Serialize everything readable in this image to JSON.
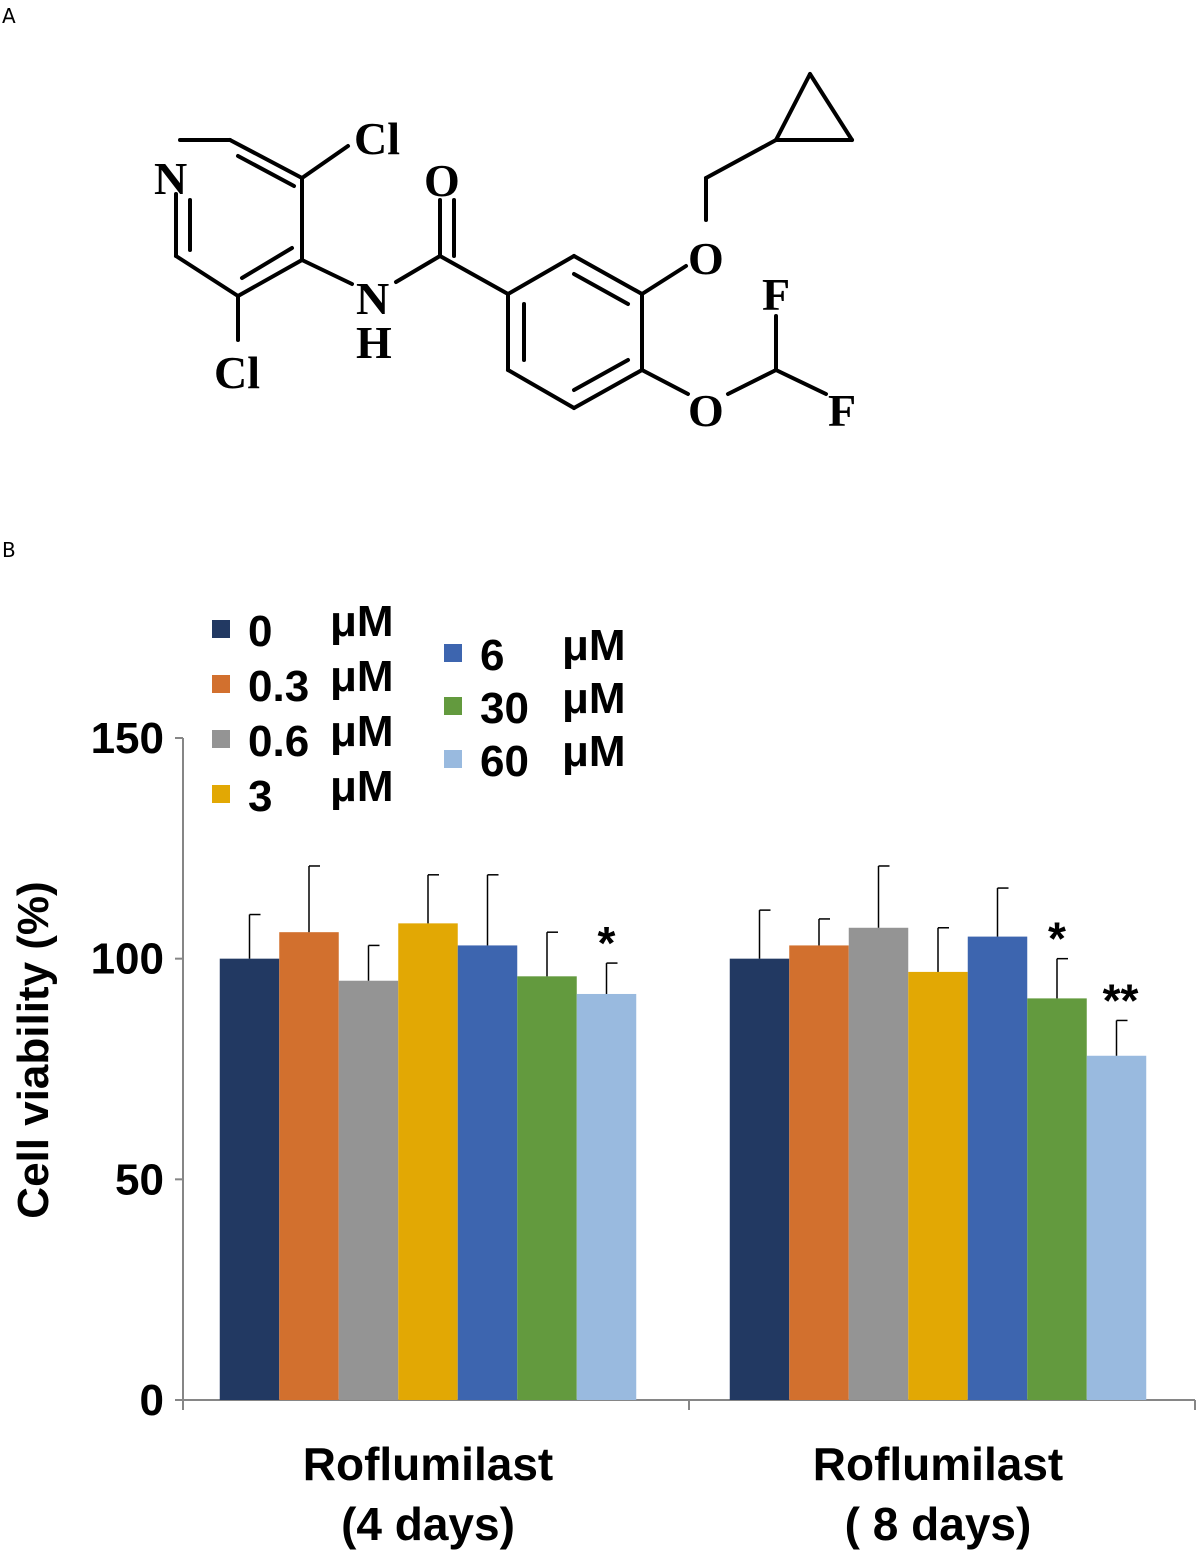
{
  "panels": {
    "a": "A",
    "b": "B"
  },
  "structure": {
    "atoms": {
      "cl_top": "Cl",
      "cl_bottom": "Cl",
      "n_ring": "N",
      "o_carbonyl": "O",
      "n_amide": "N",
      "h_amide": "H",
      "o_ether_top": "O",
      "o_ether_bottom": "O",
      "f_top": "F",
      "f_bottom": "F"
    }
  },
  "chart_data": {
    "type": "bar",
    "ylabel": "Cell viability (%)",
    "xlabel": "",
    "ylim": [
      0,
      150
    ],
    "yticks": [
      0,
      50,
      100,
      150
    ],
    "ytick_labels": [
      "0",
      "50",
      "100",
      "150"
    ],
    "categories": [
      {
        "line1": "Roflumilast",
        "line2": "(4 days)"
      },
      {
        "line1": "Roflumilast",
        "line2": "( 8 days)"
      }
    ],
    "series": [
      {
        "name": "0",
        "unit": "μM",
        "color": "#223962",
        "values": [
          100,
          100
        ],
        "errors": [
          10,
          11
        ]
      },
      {
        "name": "0.3",
        "unit": "μM",
        "color": "#d2702e",
        "values": [
          106,
          103
        ],
        "errors": [
          15,
          6
        ]
      },
      {
        "name": "0.6",
        "unit": "μM",
        "color": "#949494",
        "values": [
          95,
          107
        ],
        "errors": [
          8,
          14
        ]
      },
      {
        "name": "3",
        "unit": "μM",
        "color": "#e2a804",
        "values": [
          108,
          97
        ],
        "errors": [
          11,
          10
        ]
      },
      {
        "name": "6",
        "unit": "μM",
        "color": "#3d65af",
        "values": [
          103,
          105
        ],
        "errors": [
          16,
          11
        ]
      },
      {
        "name": "30",
        "unit": "μM",
        "color": "#639a3e",
        "values": [
          96,
          91
        ],
        "errors": [
          10,
          9
        ]
      },
      {
        "name": "60",
        "unit": "μM",
        "color": "#99badf",
        "values": [
          92,
          78
        ],
        "errors": [
          7,
          8
        ]
      }
    ],
    "annotations": [
      {
        "text": "*",
        "series": 6,
        "category": 0
      },
      {
        "text": "*",
        "series": 5,
        "category": 1
      },
      {
        "text": "**",
        "series": 6,
        "category": 1
      }
    ],
    "legend_position": "top-left",
    "grid": false
  }
}
